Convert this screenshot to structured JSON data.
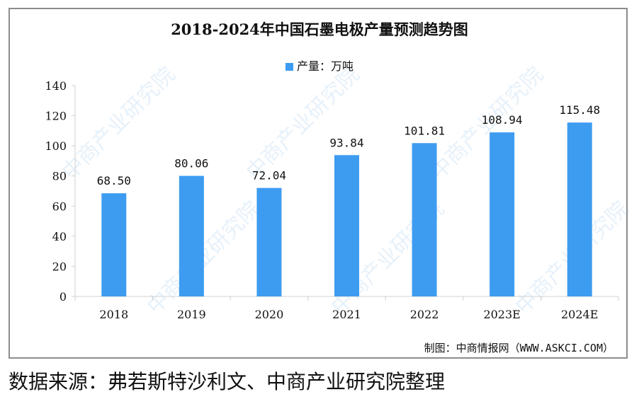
{
  "title": "2018-2024年中国石墨电极产量预测趋势图",
  "legend": {
    "label": "产量：万吨",
    "color": "#3d9cf0"
  },
  "footer": {
    "credit": "制图：中商情报网（WWW.ASKCI.COM）"
  },
  "source": "数据来源：弗若斯特沙利文、中商产业研究院整理",
  "watermark": "中商产业研究院",
  "chart_data": {
    "type": "bar",
    "title": "2018-2024年中国石墨电极产量预测趋势图",
    "categories": [
      "2018",
      "2019",
      "2020",
      "2021",
      "2022",
      "2023E",
      "2024E"
    ],
    "series": [
      {
        "name": "产量：万吨",
        "values": [
          68.5,
          80.06,
          72.04,
          93.84,
          101.81,
          108.94,
          115.48
        ]
      }
    ],
    "value_labels": [
      "68.50",
      "80.06",
      "72.04",
      "93.84",
      "101.81",
      "108.94",
      "115.48"
    ],
    "xlabel": "",
    "ylabel": "",
    "ylim": [
      0,
      140
    ],
    "yticks": [
      0,
      20,
      40,
      60,
      80,
      100,
      120,
      140
    ],
    "grid": false,
    "legend_position": "top",
    "bar_color": "#3d9cf0"
  }
}
